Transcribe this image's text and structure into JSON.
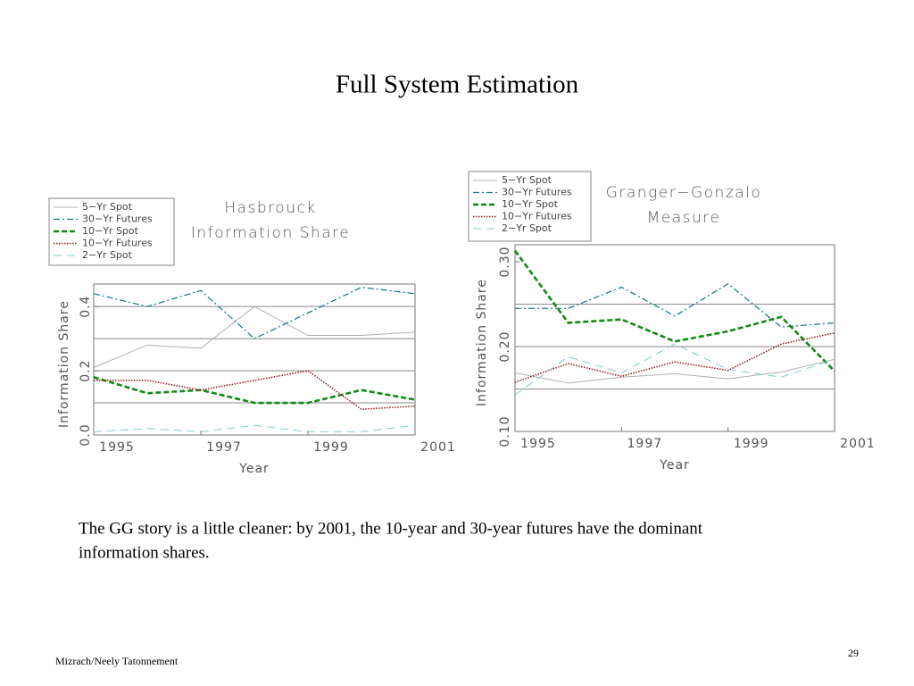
{
  "slide_title": "Full System Estimation",
  "body": [
    "The GG story is a little cleaner: by 2001, the 10-year and 30-year futures have the dominant",
    "information shares."
  ],
  "footer": "Mizrach/Neely Tatonnement",
  "page_number": "29",
  "chart_data": [
    {
      "type": "line",
      "title": [
        "Hasbrouck",
        "Information Share"
      ],
      "x_label": "Year",
      "y_label": "Information Share",
      "x": [
        1995,
        1996,
        1997,
        1998,
        1999,
        2000,
        2001
      ],
      "xlim": [
        1995,
        2001
      ],
      "xticks": [
        1995,
        1997,
        1999,
        2001
      ],
      "ylim": [
        0,
        0.47
      ],
      "yticks": [
        {
          "value": 0,
          "label": "0.0"
        },
        0.2,
        0.4
      ],
      "grid_lines": [
        0.1,
        0.2,
        0.3,
        0.4
      ],
      "legend": "upper left",
      "series": [
        {
          "name": "5−Yr Spot",
          "color": "#b0b0b0",
          "style": "solid",
          "values": [
            0.21,
            0.28,
            0.27,
            0.4,
            0.31,
            0.31,
            0.32
          ]
        },
        {
          "name": "30−Yr Futures",
          "color": "#1a7f8e",
          "style": "dashdot",
          "values": [
            0.44,
            0.4,
            0.45,
            0.3,
            0.38,
            0.46,
            0.44
          ]
        },
        {
          "name": "10−Yr Spot",
          "color": "#138a13",
          "style": "dashed",
          "values": [
            0.18,
            0.13,
            0.14,
            0.1,
            0.1,
            0.14,
            0.11
          ]
        },
        {
          "name": "10−Yr Futures",
          "color": "#8b1a1a",
          "style": "dotted",
          "values": [
            0.17,
            0.17,
            0.14,
            0.17,
            0.2,
            0.08,
            0.09
          ]
        },
        {
          "name": "2−Yr Spot",
          "color": "#7fc8d0",
          "style": "longdash",
          "values": [
            0.01,
            0.02,
            0.01,
            0.03,
            0.01,
            0.01,
            0.03
          ]
        }
      ]
    },
    {
      "type": "line",
      "title": [
        "Granger−Gonzalo",
        "Measure"
      ],
      "x_label": "Year",
      "y_label": "Information Share",
      "x": [
        1995,
        1996,
        1997,
        1998,
        1999,
        2000,
        2001
      ],
      "xlim": [
        1995,
        2001
      ],
      "xticks": [
        1995,
        1997,
        1999,
        2001
      ],
      "ylim": [
        0.1,
        0.32
      ],
      "yticks": [
        {
          "value": 0.1,
          "label": "0.10"
        },
        {
          "value": 0.2,
          "label": "0.20"
        },
        {
          "value": 0.3,
          "label": "0.30"
        }
      ],
      "grid_lines": [
        0.15,
        0.2,
        0.25
      ],
      "legend": "upper left",
      "series": [
        {
          "name": "5−Yr Spot",
          "color": "#b0b0b0",
          "style": "solid",
          "values": [
            0.169,
            0.157,
            0.164,
            0.168,
            0.162,
            0.17,
            0.185
          ]
        },
        {
          "name": "30−Yr Futures",
          "color": "#1a7f8e",
          "style": "dashdot",
          "values": [
            0.245,
            0.245,
            0.27,
            0.236,
            0.274,
            0.223,
            0.228
          ]
        },
        {
          "name": "10−Yr Spot",
          "color": "#138a13",
          "style": "dashed",
          "values": [
            0.313,
            0.228,
            0.232,
            0.206,
            0.218,
            0.235,
            0.171
          ]
        },
        {
          "name": "10−Yr Futures",
          "color": "#8b1a1a",
          "style": "dotted",
          "values": [
            0.158,
            0.18,
            0.165,
            0.182,
            0.172,
            0.203,
            0.216
          ]
        },
        {
          "name": "2−Yr Spot",
          "color": "#7fc8d0",
          "style": "longdash",
          "values": [
            0.143,
            0.188,
            0.169,
            0.203,
            0.173,
            0.164,
            0.185
          ]
        }
      ]
    }
  ]
}
